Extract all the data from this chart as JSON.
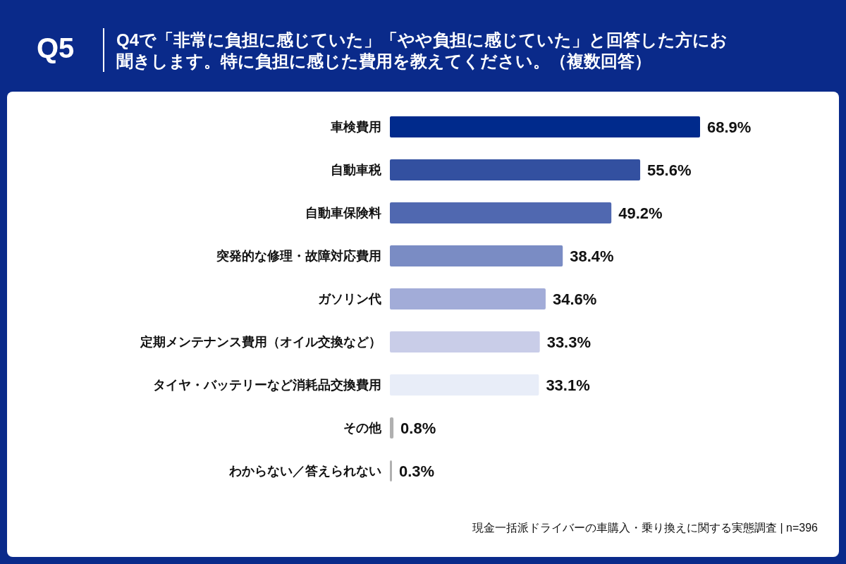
{
  "chart_data": {
    "type": "bar",
    "orientation": "horizontal",
    "title": "Q4で「非常に負担に感じていた」「やや負担に感じていた」と回答した方にお聞きします。特に負担に感じた費用を教えてください。（複数回答）",
    "categories": [
      "車検費用",
      "自動車税",
      "自動車保険料",
      "突発的な修理・故障対応費用",
      "ガソリン代",
      "定期メンテナンス費用（オイル交換など）",
      "タイヤ・バッテリーなど消耗品交換費用",
      "その他",
      "わからない／答えられない"
    ],
    "values": [
      68.9,
      55.6,
      49.2,
      38.4,
      34.6,
      33.3,
      33.1,
      0.8,
      0.3
    ],
    "value_labels": [
      "68.9%",
      "55.6%",
      "49.2%",
      "38.4%",
      "34.6%",
      "33.3%",
      "33.1%",
      "0.8%",
      "0.3%"
    ],
    "colors": [
      "#002a8c",
      "#3350a0",
      "#5068b0",
      "#7a8cc4",
      "#a2acd8",
      "#c9cde8",
      "#e8edf8",
      "#b0b0b0",
      "#b0b0b0"
    ],
    "annotations": [
      "Q5",
      "現金一括派ドライバーの車購入・乗り換えに関する実態調査 | n=396"
    ]
  }
}
